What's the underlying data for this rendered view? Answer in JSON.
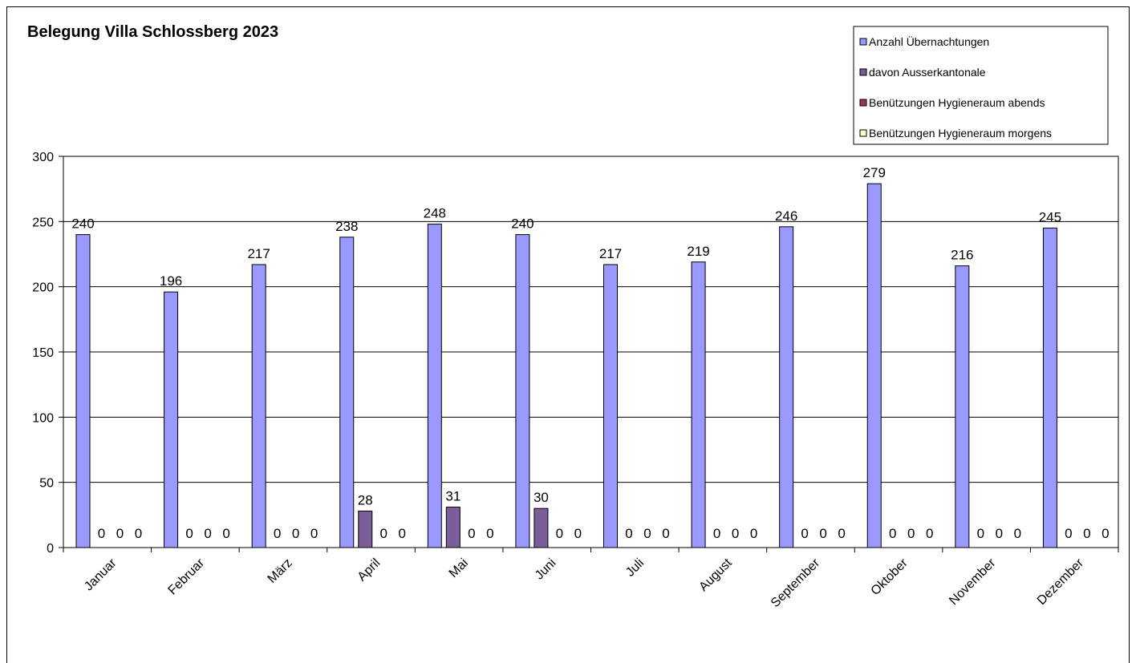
{
  "chart_data": {
    "type": "bar",
    "title": "Belegung Villa Schlossberg 2023",
    "categories": [
      "Januar",
      "Februar",
      "März",
      "April",
      "Mai",
      "Juni",
      "Juli",
      "August",
      "September",
      "Oktober",
      "November",
      "Dezember"
    ],
    "series": [
      {
        "name": "Anzahl Übernachtungen",
        "color": "#9999ff",
        "values": [
          240,
          196,
          217,
          238,
          248,
          240,
          217,
          219,
          246,
          279,
          216,
          245
        ]
      },
      {
        "name": "davon Ausserkantonale",
        "color": "#7b5e99",
        "values": [
          0,
          0,
          0,
          28,
          31,
          30,
          0,
          0,
          0,
          0,
          0,
          0
        ]
      },
      {
        "name": "Benützungen Hygieneraum abends",
        "color": "#993366",
        "values": [
          0,
          0,
          0,
          0,
          0,
          0,
          0,
          0,
          0,
          0,
          0,
          0
        ]
      },
      {
        "name": "Benützungen Hygieneraum morgens",
        "color": "#ffffcc",
        "values": [
          0,
          0,
          0,
          0,
          0,
          0,
          0,
          0,
          0,
          0,
          0,
          0
        ]
      }
    ],
    "ylim": [
      0,
      300
    ],
    "yticks": [
      0,
      50,
      100,
      150,
      200,
      250,
      300
    ],
    "grid": true,
    "legend_position": "top-right"
  }
}
